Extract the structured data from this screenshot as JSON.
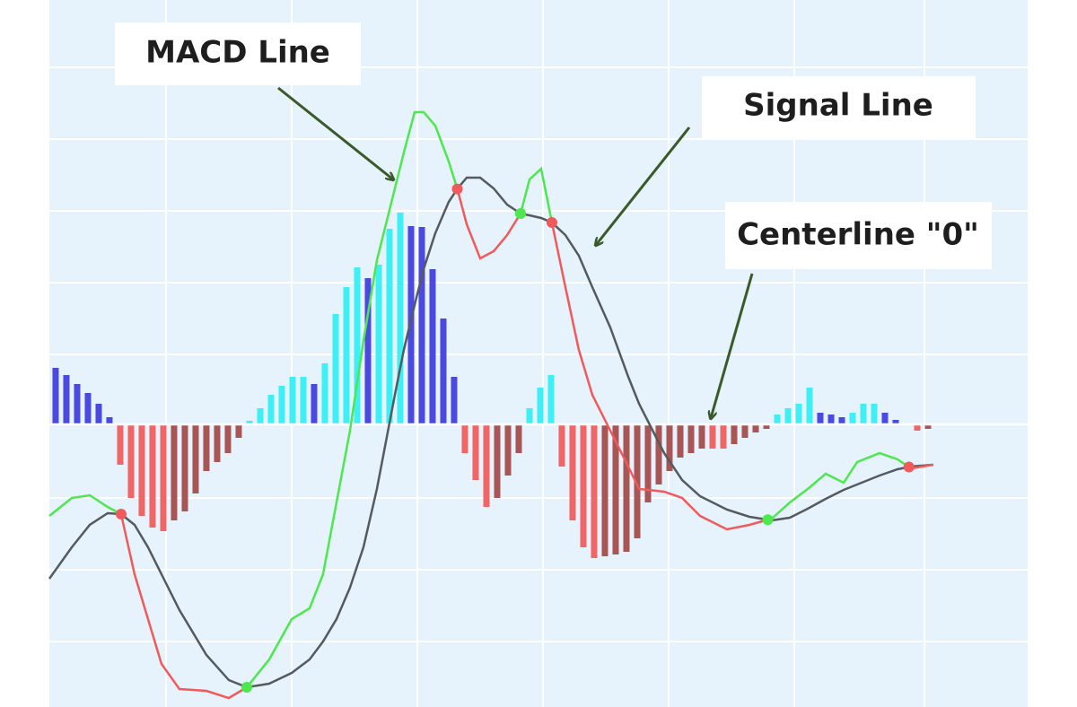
{
  "chart_data": {
    "type": "macd",
    "xlim": [
      -0.58,
      90.25
    ],
    "ylim": [
      -31.5,
      47.3
    ],
    "annotations": [
      {
        "text": "MACD Line"
      },
      {
        "text": "Signal Line"
      },
      {
        "text": "Centerline \"0\""
      }
    ],
    "histogram": {
      "colors": {
        "positive_rising": "#3ef0f5",
        "positive_falling": "#4a4ae0",
        "negative_falling": "#f06565",
        "negative_rising": "#a85555"
      },
      "values": [
        6.3,
        5.5,
        4.5,
        3.5,
        2.3,
        0.8,
        -4.5,
        -8.2,
        -10.2,
        -11.5,
        -11.9,
        -10.7,
        -9.7,
        -7.7,
        -5.2,
        -4.2,
        -3.2,
        -1.5,
        0.4,
        1.8,
        3.3,
        4.3,
        5.3,
        5.3,
        4.5,
        6.8,
        12.3,
        15.3,
        17.5,
        16.3,
        17.8,
        21.8,
        23.6,
        22.1,
        22.0,
        17.3,
        11.8,
        5.3,
        -3.2,
        -6.2,
        -9.2,
        -8.2,
        -5.7,
        -3.2,
        1.8,
        4.1,
        5.5,
        -4.7,
        -10.7,
        -13.7,
        -14.9,
        -14.7,
        -14.5,
        -14.2,
        -12.7,
        -8.7,
        -6.7,
        -5.2,
        -3.7,
        -3.2,
        -2.7,
        -2.7,
        -2.7,
        -2.2,
        -1.5,
        -0.9,
        -0.5,
        1.1,
        1.8,
        2.3,
        4.1,
        1.3,
        1.1,
        0.8,
        1.3,
        2.3,
        2.3,
        1.3,
        0.5,
        -0.1,
        -0.7,
        -0.5
      ]
    },
    "x": [
      -0.58,
      1.5,
      3.17,
      4.83,
      6.08,
      7.33,
      8.58,
      9.83,
      11.5,
      14,
      16.08,
      17.75,
      19.83,
      21.92,
      23.58,
      24.83,
      26.08,
      27.33,
      28.58,
      29.83,
      31.5,
      32.33,
      33.33,
      34.17,
      35.25,
      36.5,
      37.33,
      38.17,
      39.42,
      40.67,
      41.92,
      43.17,
      44,
      45.08,
      46.08,
      47.33,
      48.58,
      49.83,
      51.5,
      53.17,
      54.17,
      56.5,
      58.17,
      59.83,
      62.33,
      64.42,
      66.5,
      68.17,
      69.83,
      71.5,
      73.17,
      74.42,
      76.5,
      78.17,
      79.42,
      81.5
    ],
    "series": [
      {
        "colors": {
          "above": "#4de84d",
          "below": "#f05a5a"
        },
        "values": [
          -10.2,
          -8.2,
          -7.9,
          -9.2,
          -10,
          -16.7,
          -21.7,
          -26.7,
          -29.5,
          -29.7,
          -30.5,
          -29.3,
          -26.2,
          -21.7,
          -20.5,
          -16.7,
          -8.7,
          -0.7,
          9.3,
          18.3,
          26.3,
          30.3,
          34.8,
          34.8,
          33.3,
          29.3,
          26.1,
          22.3,
          18.5,
          19.3,
          21.1,
          23.5,
          27.3,
          28.5,
          22.5,
          15.3,
          8.3,
          3.3,
          -0.7,
          -4.7,
          -7.2,
          -7.5,
          -8.2,
          -10.2,
          -11.7,
          -11.2,
          -10.5,
          -8.7,
          -7.2,
          -5.5,
          -6.5,
          -4.2,
          -3.2,
          -3.9,
          -4.9,
          -4.5
        ]
      },
      {
        "color": "#555a5e",
        "values": [
          -17.2,
          -13.7,
          -11.2,
          -9.9,
          -10,
          -11.2,
          -13.7,
          -16.7,
          -20.7,
          -25.7,
          -28.5,
          -29.3,
          -28.9,
          -27.7,
          -26.2,
          -24.2,
          -21.7,
          -18.2,
          -13.7,
          -7.2,
          3.3,
          8.3,
          13.3,
          17.3,
          21.3,
          24.8,
          26.3,
          27.5,
          27.5,
          26.3,
          24.5,
          23.5,
          23.3,
          23,
          22.5,
          21.1,
          18.8,
          15.3,
          10.8,
          5.3,
          2.3,
          -3.2,
          -6.2,
          -8,
          -9.5,
          -10.3,
          -10.7,
          -10.4,
          -9.4,
          -8.3,
          -7.3,
          -6.7,
          -5.7,
          -5,
          -4.7,
          -4.5
        ]
      }
    ]
  }
}
